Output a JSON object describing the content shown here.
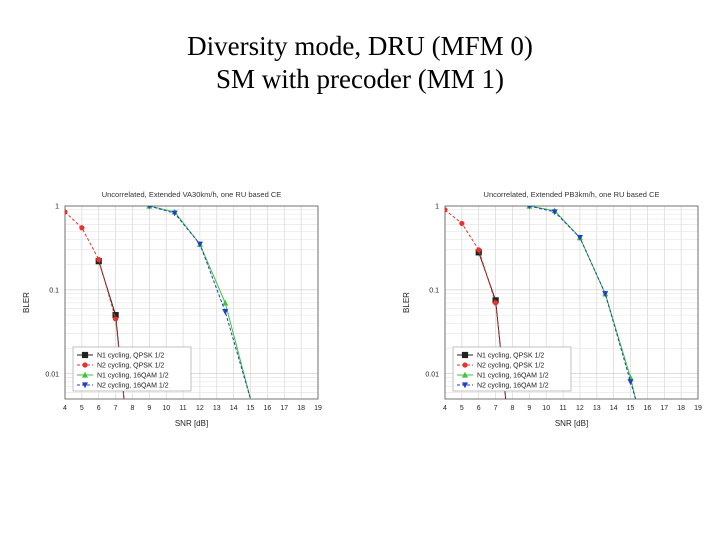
{
  "slide": {
    "title_line1": "Diversity mode, DRU (MFM 0)",
    "title_line2": "SM with precoder (MM 1)"
  },
  "chart_data": [
    {
      "type": "line",
      "title": "Uncorrelated, Extended VA30km/h, one RU based CE",
      "xlabel": "SNR [dB]",
      "ylabel": "BLER",
      "x_scale": "linear",
      "y_scale": "log",
      "xlim": [
        4,
        19
      ],
      "ylim": [
        0.005,
        1
      ],
      "xticks": [
        "4",
        "5",
        "6",
        "7",
        "8",
        "9",
        "10",
        "11",
        "12",
        "13",
        "14",
        "15",
        "16",
        "17",
        "18",
        "19"
      ],
      "yticks": [
        "1",
        "0.1",
        "0.01"
      ],
      "grid": true,
      "legend_position": "bottom-left",
      "series": [
        {
          "name": "N1 cycling, QPSK 1/2",
          "color": "#222222",
          "marker": "square",
          "dash": "solid",
          "x": [
            6,
            7,
            7.5
          ],
          "y": [
            0.22,
            0.05,
            0.005
          ]
        },
        {
          "name": "N2 cycling, QPSK 1/2",
          "color": "#e8322a",
          "marker": "circle",
          "dash": "dashed",
          "x": [
            4,
            5,
            6,
            7,
            7.5
          ],
          "y": [
            0.85,
            0.55,
            0.23,
            0.045,
            0.005
          ]
        },
        {
          "name": "N1 cycling, 16QAM 1/2",
          "color": "#3fc23f",
          "marker": "triangle-up",
          "dash": "solid",
          "x": [
            9,
            10.5,
            12,
            13.5,
            15
          ],
          "y": [
            1.0,
            0.85,
            0.35,
            0.07,
            0.005
          ]
        },
        {
          "name": "N2 cycling, 16QAM 1/2",
          "color": "#1f3fc8",
          "marker": "triangle-down",
          "dash": "dashed",
          "x": [
            9,
            10.5,
            12,
            13.5,
            15
          ],
          "y": [
            1.0,
            0.82,
            0.35,
            0.055,
            0.005
          ]
        }
      ]
    },
    {
      "type": "line",
      "title": "Uncorrelated, Extended PB3km/h, one RU based CE",
      "xlabel": "SNR [dB]",
      "ylabel": "BLER",
      "x_scale": "linear",
      "y_scale": "log",
      "xlim": [
        4,
        19
      ],
      "ylim": [
        0.005,
        1
      ],
      "xticks": [
        "4",
        "5",
        "6",
        "7",
        "8",
        "9",
        "10",
        "11",
        "12",
        "13",
        "14",
        "15",
        "16",
        "17",
        "18",
        "19"
      ],
      "yticks": [
        "1",
        "0.1",
        "0.01"
      ],
      "grid": true,
      "legend_position": "bottom-left",
      "series": [
        {
          "name": "N1 cycling, QPSK 1/2",
          "color": "#222222",
          "marker": "square",
          "dash": "solid",
          "x": [
            6,
            7,
            7.6
          ],
          "y": [
            0.28,
            0.075,
            0.005
          ]
        },
        {
          "name": "N2 cycling, QPSK 1/2",
          "color": "#e8322a",
          "marker": "circle",
          "dash": "dashed",
          "x": [
            4,
            5,
            6,
            7,
            7.6
          ],
          "y": [
            0.9,
            0.62,
            0.3,
            0.07,
            0.005
          ]
        },
        {
          "name": "N1 cycling, 16QAM 1/2",
          "color": "#3fc23f",
          "marker": "triangle-up",
          "dash": "solid",
          "x": [
            9,
            10.5,
            12,
            13.5,
            15,
            15.3
          ],
          "y": [
            1.0,
            0.88,
            0.42,
            0.09,
            0.009,
            0.005
          ]
        },
        {
          "name": "N2 cycling, 16QAM 1/2",
          "color": "#1f3fc8",
          "marker": "triangle-down",
          "dash": "dashed",
          "x": [
            9,
            10.5,
            12,
            13.5,
            15,
            15.3
          ],
          "y": [
            1.0,
            0.85,
            0.42,
            0.09,
            0.008,
            0.005
          ]
        }
      ]
    }
  ]
}
